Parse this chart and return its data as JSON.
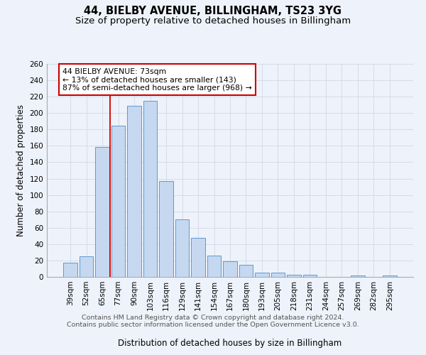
{
  "title": "44, BIELBY AVENUE, BILLINGHAM, TS23 3YG",
  "subtitle": "Size of property relative to detached houses in Billingham",
  "xlabel": "Distribution of detached houses by size in Billingham",
  "ylabel": "Number of detached properties",
  "categories": [
    "39sqm",
    "52sqm",
    "65sqm",
    "77sqm",
    "90sqm",
    "103sqm",
    "116sqm",
    "129sqm",
    "141sqm",
    "154sqm",
    "167sqm",
    "180sqm",
    "193sqm",
    "205sqm",
    "218sqm",
    "231sqm",
    "244sqm",
    "257sqm",
    "269sqm",
    "282sqm",
    "295sqm"
  ],
  "values": [
    17,
    25,
    159,
    185,
    209,
    215,
    117,
    70,
    48,
    26,
    19,
    15,
    5,
    5,
    3,
    3,
    0,
    0,
    2,
    0,
    2
  ],
  "bar_color": "#c5d8f0",
  "bar_edgecolor": "#5b9bd5",
  "grid_color": "#d0d9e8",
  "background_color": "#eef2fa",
  "red_line_x": 2.5,
  "annotation_title": "44 BIELBY AVENUE: 73sqm",
  "annotation_line1": "← 13% of detached houses are smaller (143)",
  "annotation_line2": "87% of semi-detached houses are larger (968) →",
  "annotation_box_color": "#ffffff",
  "annotation_border_color": "#cc0000",
  "red_line_color": "#cc0000",
  "ylim": [
    0,
    260
  ],
  "yticks": [
    0,
    20,
    40,
    60,
    80,
    100,
    120,
    140,
    160,
    180,
    200,
    220,
    240,
    260
  ],
  "footnote1": "Contains HM Land Registry data © Crown copyright and database right 2024.",
  "footnote2": "Contains public sector information licensed under the Open Government Licence v3.0.",
  "title_fontsize": 10.5,
  "subtitle_fontsize": 9.5,
  "xlabel_fontsize": 8.5,
  "ylabel_fontsize": 8.5,
  "tick_fontsize": 7.5,
  "annotation_fontsize": 7.8,
  "footnote_fontsize": 6.8
}
